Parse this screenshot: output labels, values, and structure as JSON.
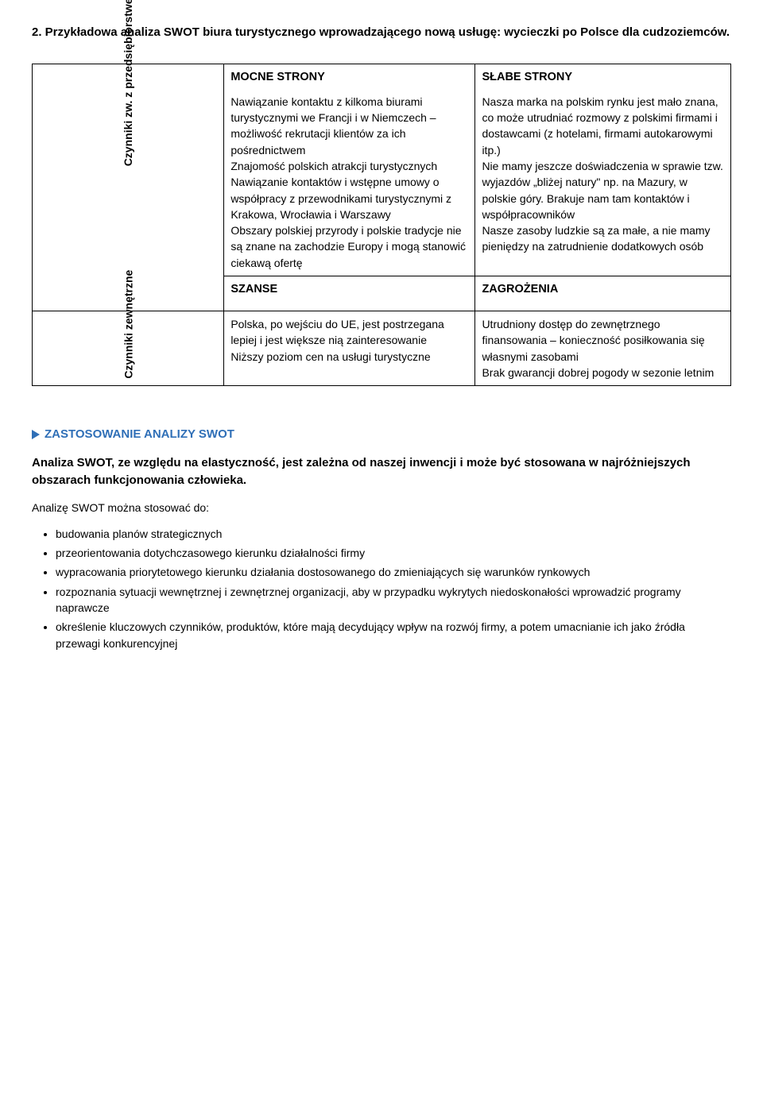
{
  "heading": "2. Przykładowa analiza SWOT biura turystycznego wprowadzającego nową usługę: wycieczki po Polsce dla cudzoziemców.",
  "swot": {
    "row_label_top": "Czynniki zw. z przedsiębiorstwem",
    "row_label_bottom": "Czynniki zewnętrzne",
    "strengths": {
      "title": "MOCNE STRONY",
      "body": "Nawiązanie kontaktu z kilkoma biurami turystycznymi we Francji i w Niemczech – możliwość rekrutacji klientów za ich pośrednictwem\nZnajomość polskich atrakcji turystycznych\nNawiązanie kontaktów i wstępne umowy o współpracy z przewodnikami turystycznymi z Krakowa, Wrocławia i Warszawy\nObszary polskiej przyrody i polskie tradycje nie są znane na zachodzie Europy i mogą stanowić ciekawą ofertę"
    },
    "weaknesses": {
      "title": "SŁABE STRONY",
      "body": "Nasza marka na polskim rynku jest mało znana, co może utrudniać rozmowy z polskimi firmami i dostawcami (z hotelami, firmami autokarowymi itp.)\nNie mamy jeszcze doświadczenia w sprawie tzw. wyjazdów „bliżej natury\" np. na Mazury, w polskie góry. Brakuje nam tam kontaktów i współpracowników\nNasze zasoby ludzkie są za małe, a nie mamy pieniędzy na zatrudnienie dodatkowych osób"
    },
    "opportunities": {
      "title": "SZANSE",
      "body": "Polska, po wejściu do UE, jest postrzegana lepiej i jest większe nią zainteresowanie\nNiższy poziom cen na usługi turystyczne"
    },
    "threats": {
      "title": "ZAGROŻENIA",
      "body": "Utrudniony dostęp do zewnętrznego finansowania – konieczność posiłkowania się własnymi zasobami\nBrak gwarancji dobrej pogody w sezonie letnim"
    }
  },
  "section": {
    "marker_label": "ZASTOSOWANIE ANALIZY SWOT",
    "flex_para": "Analiza SWOT, ze względu na elastyczność, jest zależna od naszej inwencji i może być stosowana w najróżniejszych obszarach funkcjonowania człowieka.",
    "intro": "Analizę SWOT można stosować do:",
    "bullets": [
      "budowania planów strategicznych",
      "przeorientowania dotychczasowego kierunku działalności firmy",
      "wypracowania priorytetowego kierunku działania dostosowanego do zmieniających się warunków rynkowych",
      "rozpoznania sytuacji wewnętrznej i zewnętrznej organizacji, aby w przypadku wykrytych niedoskonałości wprowadzić programy naprawcze",
      "określenie kluczowych czynników, produktów, które mają decydujący wpływ na rozwój firmy, a potem umacnianie ich jako źródła przewagi konkurencyjnej"
    ]
  },
  "colors": {
    "accent": "#2f6fb7",
    "border": "#000000",
    "text": "#000000",
    "background": "#ffffff"
  }
}
